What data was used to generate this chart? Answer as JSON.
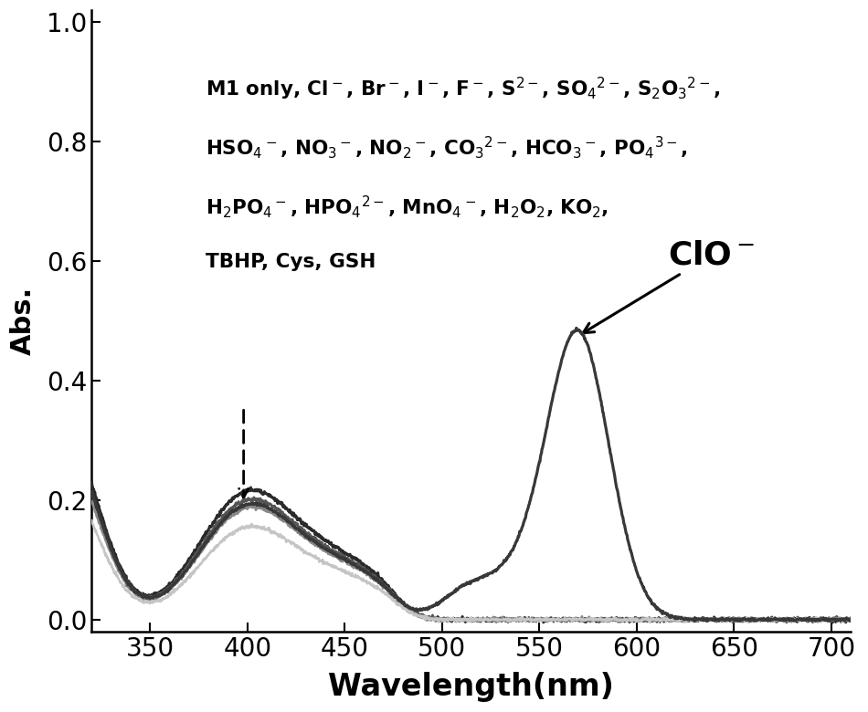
{
  "xlabel": "Wavelength(nm)",
  "ylabel": "Abs.",
  "xlim": [
    320,
    710
  ],
  "ylim": [
    -0.02,
    1.02
  ],
  "yticks": [
    0.0,
    0.2,
    0.4,
    0.6,
    0.8,
    1.0
  ],
  "xticks": [
    350,
    400,
    450,
    500,
    550,
    600,
    650,
    700
  ],
  "xlabel_fontsize": 24,
  "ylabel_fontsize": 22,
  "tick_fontsize": 20,
  "clo_fontsize": 26,
  "line_colors_others": [
    "#2a2a2a",
    "#555555",
    "#888888",
    "#c5c5c5"
  ],
  "line_color_clo": "#383838",
  "annotation_text_line1": "M1 only, Cl$^-$, Br$^-$, I$^-$, F$^-$, S$^{2-}$, SO$_4$$^{2-}$, S$_2$O$_3$$^{2-}$,",
  "annotation_text_line2": "HSO$_4$$^-$, NO$_3$$^-$, NO$_2$$^-$, CO$_3$$^{2-}$, HCO$_3$$^-$, PO$_4$$^{3-}$,",
  "annotation_text_line3": "H$_2$PO$_4$$^-$, HPO$_4$$^{2-}$, MnO$_4$$^-$, H$_2$O$_2$, KO$_2$,",
  "annotation_text_line4": "TBHP, Cys, GSH",
  "text_fontsize": 15.5
}
